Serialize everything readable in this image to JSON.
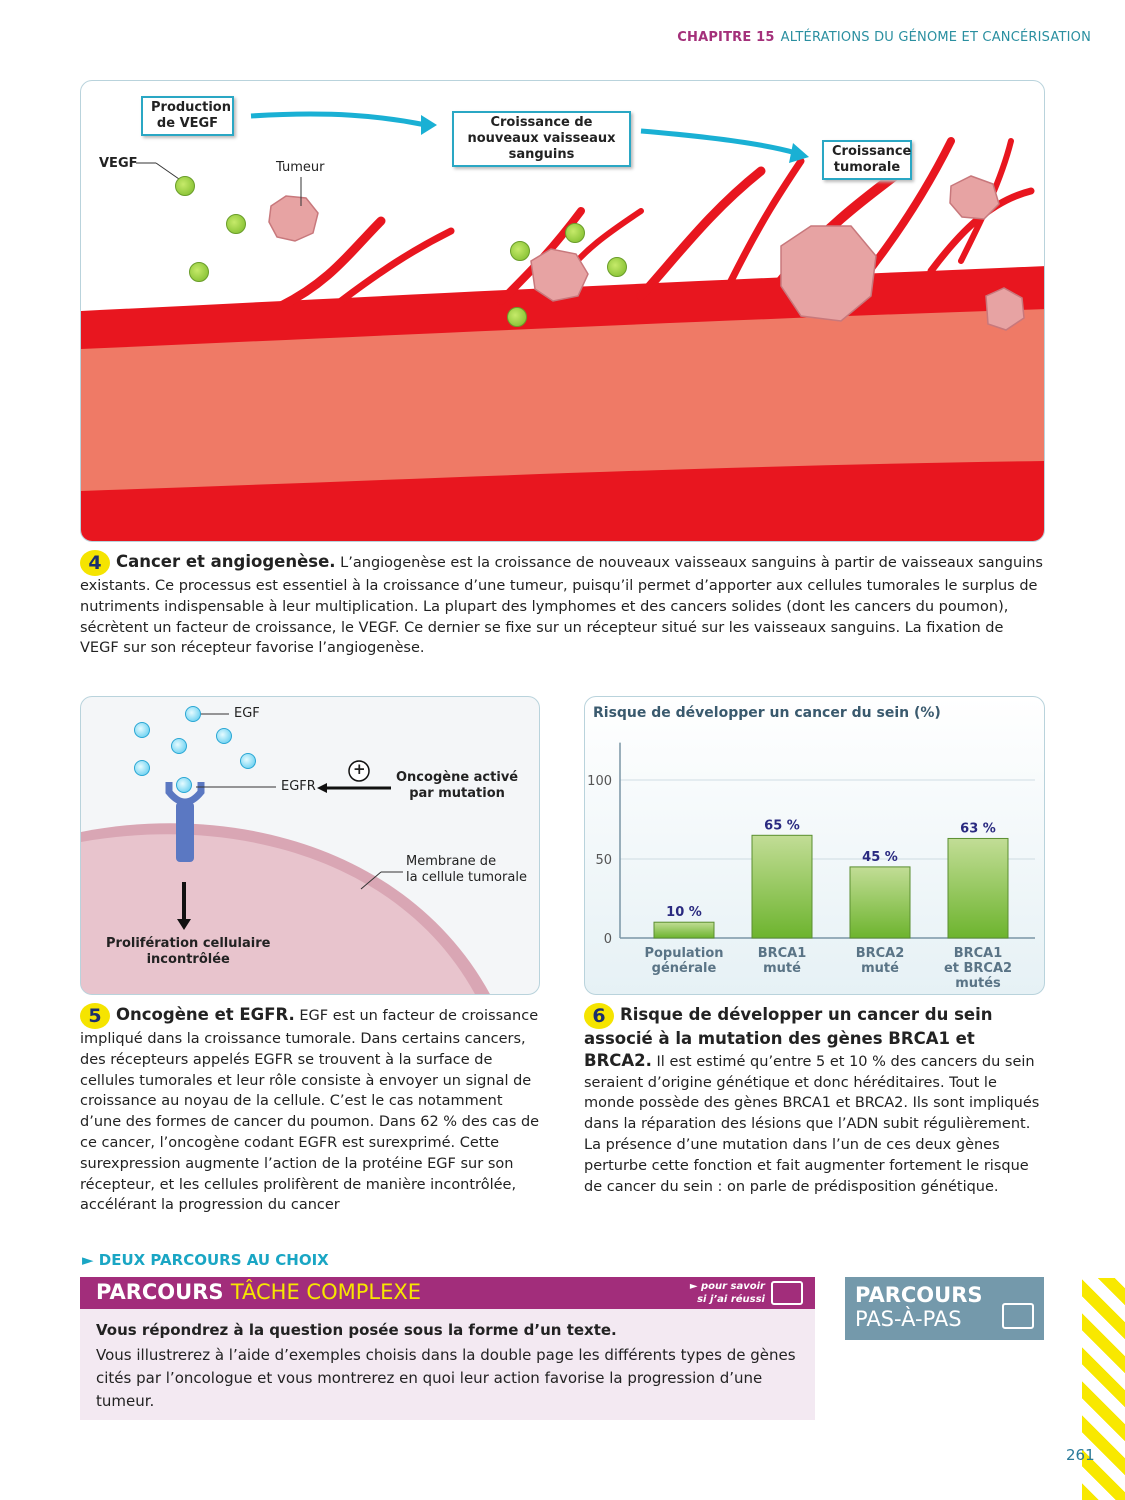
{
  "header": {
    "chapter": "CHAPITRE 15",
    "title": "ALTÉRATIONS DU GÉNOME ET CANCÉRISATION"
  },
  "fig4": {
    "labels": {
      "production": "Production\nde VEGF",
      "croissance_vaisseaux": "Croissance de nouveaux\nvaisseaux sanguins",
      "croissance_tumorale": "Croissance\ntumorale",
      "vegf": "VEGF",
      "tumeur": "Tumeur"
    },
    "caption": {
      "number": "4",
      "title": "Cancer et angiogenèse.",
      "text": " L’angiogenèse est la croissance de nouveaux vaisseaux sanguins à partir de vaisseaux sanguins existants. Ce processus est essentiel à la croissance d’une tumeur, puisqu’il permet d’apporter aux cellules tumorales le surplus de nutriments indispensable à leur multiplication. La plupart des lymphomes et des cancers solides (dont les cancers du poumon), sécrètent un facteur de croissance, le VEGF. Ce dernier se fixe sur un récepteur situé sur les vaisseaux sanguins. La fixation de VEGF sur son récepteur favorise l’angiogenèse."
    }
  },
  "fig5": {
    "labels": {
      "egf": "EGF",
      "egfr": "EGFR",
      "plus": "+",
      "oncogene": "Oncogène activé\npar mutation",
      "membrane": "Membrane de\nla cellule tumorale",
      "proliferation": "Prolifération cellulaire\nincontrôlée"
    },
    "caption": {
      "number": "5",
      "title": "Oncogène et EGFR.",
      "text": " EGF est un facteur de croissance impliqué dans la croissance tumorale. Dans certains cancers, des récepteurs appelés EGFR se trouvent à la surface de cellules tumorales et leur rôle consiste à envoyer un signal de croissance au noyau de la cellule. C’est le cas notamment d’une des formes de cancer du poumon. Dans 62 % des cas de ce cancer, l’oncogène codant EGFR est surexprimé. Cette surexpression augmente l’action de la protéine EGF sur son récepteur, et les cellules prolifèrent de manière incontrôlée, accélérant la progression du cancer"
    }
  },
  "chart_data": {
    "type": "bar",
    "title": "Risque de développer un cancer du sein (%)",
    "categories": [
      "Population\ngénérale",
      "BRCA1\nmuté",
      "BRCA2\nmuté",
      "BRCA1\net BRCA2\nmutés"
    ],
    "values": [
      10,
      65,
      45,
      63
    ],
    "data_labels": [
      "10 %",
      "65 %",
      "45 %",
      "63 %"
    ],
    "yticks": [
      0,
      50,
      100
    ],
    "ylim": [
      0,
      130
    ],
    "grid": true,
    "bar_color": "#6db42e"
  },
  "fig6": {
    "caption": {
      "number": "6",
      "title": "Risque de développer un cancer du sein associé à la mutation des gènes BRCA1 et BRCA2.",
      "text": " Il est estimé qu’entre 5 et 10 % des cancers du sein seraient d’origine génétique et donc héréditaires. Tout le monde possède des gènes BRCA1 et BRCA2. Ils sont impliqués dans la réparation des lésions que l’ADN subit régulièrement. La présence d’une mutation dans l’un de ces deux gènes perturbe cette fonction et fait augmenter fortement le risque de cancer du sein : on parle de prédisposition génétique."
    }
  },
  "parcours": {
    "intro": "► DEUX PARCOURS AU CHOIX",
    "tache_a": "PARCOURS",
    "tache_b": "TÂCHE COMPLEXE",
    "savoir": "► pour savoir\nsi j’ai réussi",
    "q_bold": "Vous répondrez à la question posée sous la forme d’un texte.",
    "q_text": "Vous illustrerez à l’aide d’exemples choisis dans la double page les différents types de gènes cités par l’oncologue et vous montrerez en quoi leur action favorise la progression d’une tumeur.",
    "pap_a": "PARCOURS",
    "pap_b": "PAS-À-PAS"
  },
  "page_number": "261"
}
